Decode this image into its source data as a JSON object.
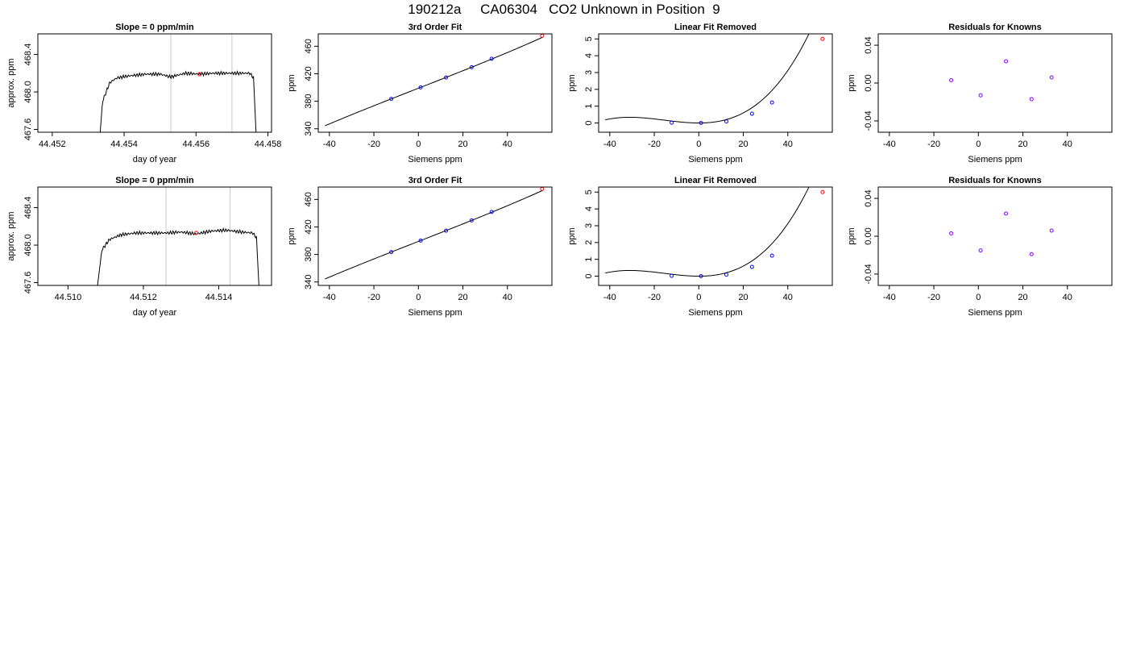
{
  "page": {
    "title": "190212a     CA06304   CO2 Unknown in Position  9"
  },
  "chart_data": [
    {
      "id": "r1-trace",
      "type": "line",
      "title": "Slope =  0  ppm/min",
      "xlabel": "day of year",
      "ylabel": "approx. ppm",
      "xlim": [
        44.4516,
        44.4581
      ],
      "ylim": [
        467.57,
        468.62
      ],
      "xticks": [
        44.452,
        44.454,
        44.456,
        44.458
      ],
      "xtick_labels": [
        "44.452",
        "44.454",
        "44.456",
        "44.458"
      ],
      "yticks": [
        467.6,
        468.0,
        468.4
      ],
      "ytick_labels": [
        "467.6",
        "468.0",
        "468.4"
      ],
      "vlines": [
        44.4553,
        44.457
      ],
      "series": [
        {
          "points": [
            [
              44.4532,
              466.9
            ],
            [
              44.4534,
              467.9
            ],
            [
              44.4536,
              468.1
            ],
            [
              44.4538,
              468.15
            ],
            [
              44.4541,
              468.17
            ],
            [
              44.4546,
              468.19
            ],
            [
              44.455,
              468.19
            ],
            [
              44.4553,
              468.16
            ],
            [
              44.4557,
              468.2
            ],
            [
              44.4561,
              468.19
            ],
            [
              44.4565,
              468.2
            ],
            [
              44.457,
              468.2
            ],
            [
              44.4575,
              468.2
            ],
            [
              44.4576,
              468.15
            ],
            [
              44.4577,
              467.3
            ]
          ],
          "color": "#000000"
        }
      ],
      "markers": [
        {
          "x": 44.4561,
          "y": 468.19,
          "color": "#ff0000"
        }
      ]
    },
    {
      "id": "r1-fit",
      "type": "scatter",
      "title": "3rd Order Fit",
      "xlabel": "Siemens ppm",
      "ylabel": "ppm",
      "xlim": [
        -45,
        60
      ],
      "ylim": [
        335,
        478
      ],
      "xticks": [
        -40,
        -20,
        0,
        20,
        40
      ],
      "xtick_labels": [
        "-40",
        "-20",
        "0",
        "20",
        "40"
      ],
      "yticks": [
        340,
        380,
        420,
        460
      ],
      "ytick_labels": [
        "340",
        "380",
        "420",
        "460"
      ],
      "curve": {
        "type": "polynomial",
        "coefficients": [
          398.94,
          1.265,
          1e-05,
          2e-05
        ],
        "xrange": [
          -42,
          56
        ],
        "color": "#000000"
      },
      "points": [
        {
          "x": -12.2,
          "y": 383.5,
          "color": "#0000ff"
        },
        {
          "x": 1.0,
          "y": 400.2,
          "color": "#0000ff"
        },
        {
          "x": 12.4,
          "y": 414.6,
          "color": "#0000ff"
        },
        {
          "x": 23.9,
          "y": 429.5,
          "color": "#0000ff"
        },
        {
          "x": 32.9,
          "y": 441.8,
          "color": "#0000ff"
        },
        {
          "x": 55.6,
          "y": 475.2,
          "color": "#ff0000"
        }
      ]
    },
    {
      "id": "r1-linear-removed",
      "type": "scatter",
      "title": "Linear Fit Removed",
      "xlabel": "Siemens ppm",
      "ylabel": "ppm",
      "xlim": [
        -45,
        60
      ],
      "ylim": [
        -0.55,
        5.3
      ],
      "xticks": [
        -40,
        -20,
        0,
        20,
        40
      ],
      "xtick_labels": [
        "-40",
        "-20",
        "0",
        "20",
        "40"
      ],
      "yticks": [
        0,
        1,
        2,
        3,
        4,
        5
      ],
      "ytick_labels": [
        "0",
        "1",
        "2",
        "3",
        "4",
        "5"
      ],
      "curve": {
        "type": "polynomial",
        "coefficients": [
          0,
          0,
          0.00105,
          2.25e-05
        ],
        "xrange": [
          -42,
          56
        ],
        "color": "#000000"
      },
      "points": [
        {
          "x": -12.2,
          "y": 0.02,
          "color": "#0000ff"
        },
        {
          "x": 1.0,
          "y": 0.0,
          "color": "#0000ff"
        },
        {
          "x": 12.4,
          "y": 0.09,
          "color": "#0000ff"
        },
        {
          "x": 23.9,
          "y": 0.55,
          "color": "#0000ff"
        },
        {
          "x": 32.9,
          "y": 1.22,
          "color": "#0000ff"
        },
        {
          "x": 55.6,
          "y": 5.0,
          "color": "#ff0000"
        }
      ]
    },
    {
      "id": "r1-residuals",
      "type": "scatter",
      "title": "Residuals for Knowns",
      "xlabel": "Siemens ppm",
      "ylabel": "ppm",
      "xlim": [
        -45,
        60
      ],
      "ylim": [
        -0.052,
        0.052
      ],
      "xticks": [
        -40,
        -20,
        0,
        20,
        40
      ],
      "xtick_labels": [
        "-40",
        "-20",
        "0",
        "20",
        "40"
      ],
      "yticks": [
        -0.04,
        0.0,
        0.04
      ],
      "ytick_labels": [
        "-0.04",
        "0.00",
        "0.04"
      ],
      "points": [
        {
          "x": -12.2,
          "y": 0.003,
          "color": "#7f00ff"
        },
        {
          "x": 1.0,
          "y": -0.013,
          "color": "#7f00ff"
        },
        {
          "x": 12.4,
          "y": 0.023,
          "color": "#7f00ff"
        },
        {
          "x": 23.9,
          "y": -0.017,
          "color": "#7f00ff"
        },
        {
          "x": 32.9,
          "y": 0.006,
          "color": "#7f00ff"
        }
      ]
    },
    {
      "id": "r2-trace",
      "type": "line",
      "title": "Slope =  0  ppm/min",
      "xlabel": "day of year",
      "ylabel": "approx. ppm",
      "xlim": [
        44.5092,
        44.5154
      ],
      "ylim": [
        467.57,
        468.62
      ],
      "xticks": [
        44.51,
        44.512,
        44.514
      ],
      "xtick_labels": [
        "44.510",
        "44.512",
        "44.514"
      ],
      "yticks": [
        467.6,
        468.0,
        468.4
      ],
      "ytick_labels": [
        "467.6",
        "468.0",
        "468.4"
      ],
      "vlines": [
        44.5126,
        44.5143
      ],
      "series": [
        {
          "points": [
            [
              44.5107,
              467.3
            ],
            [
              44.5109,
              467.95
            ],
            [
              44.5111,
              468.06
            ],
            [
              44.5114,
              468.11
            ],
            [
              44.5118,
              468.13
            ],
            [
              44.5122,
              468.13
            ],
            [
              44.5126,
              468.13
            ],
            [
              44.513,
              468.14
            ],
            [
              44.5134,
              468.12
            ],
            [
              44.5138,
              468.15
            ],
            [
              44.5142,
              468.16
            ],
            [
              44.5146,
              468.14
            ],
            [
              44.5149,
              468.13
            ],
            [
              44.515,
              468.08
            ],
            [
              44.5151,
              467.3
            ]
          ],
          "color": "#000000"
        }
      ],
      "markers": [
        {
          "x": 44.5134,
          "y": 468.13,
          "color": "#ff0000"
        }
      ]
    },
    {
      "id": "r2-fit",
      "type": "scatter",
      "title": "3rd Order Fit",
      "xlabel": "Siemens ppm",
      "ylabel": "ppm",
      "xlim": [
        -45,
        60
      ],
      "ylim": [
        335,
        478
      ],
      "xticks": [
        -40,
        -20,
        0,
        20,
        40
      ],
      "xtick_labels": [
        "-40",
        "-20",
        "0",
        "20",
        "40"
      ],
      "yticks": [
        340,
        380,
        420,
        460
      ],
      "ytick_labels": [
        "340",
        "380",
        "420",
        "460"
      ],
      "curve": {
        "type": "polynomial",
        "coefficients": [
          398.94,
          1.265,
          1e-05,
          2e-05
        ],
        "xrange": [
          -42,
          56
        ],
        "color": "#000000"
      },
      "points": [
        {
          "x": -12.2,
          "y": 383.5,
          "color": "#0000ff"
        },
        {
          "x": 1.0,
          "y": 400.2,
          "color": "#0000ff"
        },
        {
          "x": 12.4,
          "y": 414.6,
          "color": "#0000ff"
        },
        {
          "x": 23.9,
          "y": 429.5,
          "color": "#0000ff"
        },
        {
          "x": 32.9,
          "y": 441.8,
          "color": "#0000ff"
        },
        {
          "x": 55.6,
          "y": 475.2,
          "color": "#ff0000"
        }
      ]
    },
    {
      "id": "r2-linear-removed",
      "type": "scatter",
      "title": "Linear Fit Removed",
      "xlabel": "Siemens ppm",
      "ylabel": "ppm",
      "xlim": [
        -45,
        60
      ],
      "ylim": [
        -0.55,
        5.3
      ],
      "xticks": [
        -40,
        -20,
        0,
        20,
        40
      ],
      "xtick_labels": [
        "-40",
        "-20",
        "0",
        "20",
        "40"
      ],
      "yticks": [
        0,
        1,
        2,
        3,
        4,
        5
      ],
      "ytick_labels": [
        "0",
        "1",
        "2",
        "3",
        "4",
        "5"
      ],
      "curve": {
        "type": "polynomial",
        "coefficients": [
          0,
          0,
          0.00105,
          2.25e-05
        ],
        "xrange": [
          -42,
          56
        ],
        "color": "#000000"
      },
      "points": [
        {
          "x": -12.2,
          "y": 0.02,
          "color": "#0000ff"
        },
        {
          "x": 1.0,
          "y": 0.0,
          "color": "#0000ff"
        },
        {
          "x": 12.4,
          "y": 0.09,
          "color": "#0000ff"
        },
        {
          "x": 23.9,
          "y": 0.55,
          "color": "#0000ff"
        },
        {
          "x": 32.9,
          "y": 1.22,
          "color": "#0000ff"
        },
        {
          "x": 55.6,
          "y": 5.0,
          "color": "#ff0000"
        }
      ]
    },
    {
      "id": "r2-residuals",
      "type": "scatter",
      "title": "Residuals for Knowns",
      "xlabel": "Siemens ppm",
      "ylabel": "ppm",
      "xlim": [
        -45,
        60
      ],
      "ylim": [
        -0.052,
        0.052
      ],
      "xticks": [
        -40,
        -20,
        0,
        20,
        40
      ],
      "xtick_labels": [
        "-40",
        "-20",
        "0",
        "20",
        "40"
      ],
      "yticks": [
        -0.04,
        0.0,
        0.04
      ],
      "ytick_labels": [
        "-0.04",
        "0.00",
        "0.04"
      ],
      "points": [
        {
          "x": -12.2,
          "y": 0.003,
          "color": "#7f00ff"
        },
        {
          "x": 1.0,
          "y": -0.015,
          "color": "#7f00ff"
        },
        {
          "x": 12.4,
          "y": 0.024,
          "color": "#7f00ff"
        },
        {
          "x": 23.9,
          "y": -0.019,
          "color": "#7f00ff"
        },
        {
          "x": 32.9,
          "y": 0.006,
          "color": "#7f00ff"
        }
      ]
    }
  ]
}
